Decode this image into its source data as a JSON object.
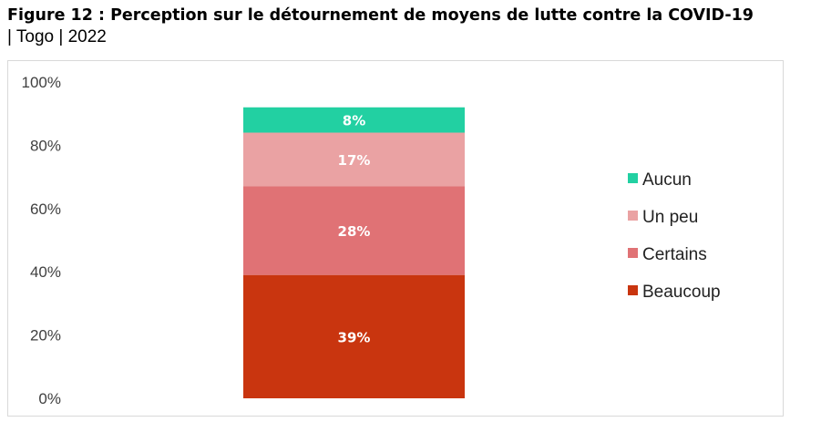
{
  "title": {
    "main": "Figure 12 : Perception sur le détournement de moyens de lutte contre la COVID-19",
    "sub": "| Togo | 2022"
  },
  "chart_data": {
    "type": "bar",
    "stacked": true,
    "ytick_labels": [
      "0%",
      "20%",
      "40%",
      "60%",
      "80%",
      "100%"
    ],
    "ylim": [
      0,
      100
    ],
    "legend_position": "right",
    "series": [
      {
        "name": "Beaucoup",
        "values": [
          39
        ],
        "label": "39%",
        "color": "#C9350F"
      },
      {
        "name": "Certains",
        "values": [
          28
        ],
        "label": "28%",
        "color": "#E07275"
      },
      {
        "name": "Un peu",
        "values": [
          17
        ],
        "label": "17%",
        "color": "#EAA2A3"
      },
      {
        "name": "Aucun",
        "values": [
          8
        ],
        "label": "8%",
        "color": "#22D0A2"
      }
    ]
  }
}
